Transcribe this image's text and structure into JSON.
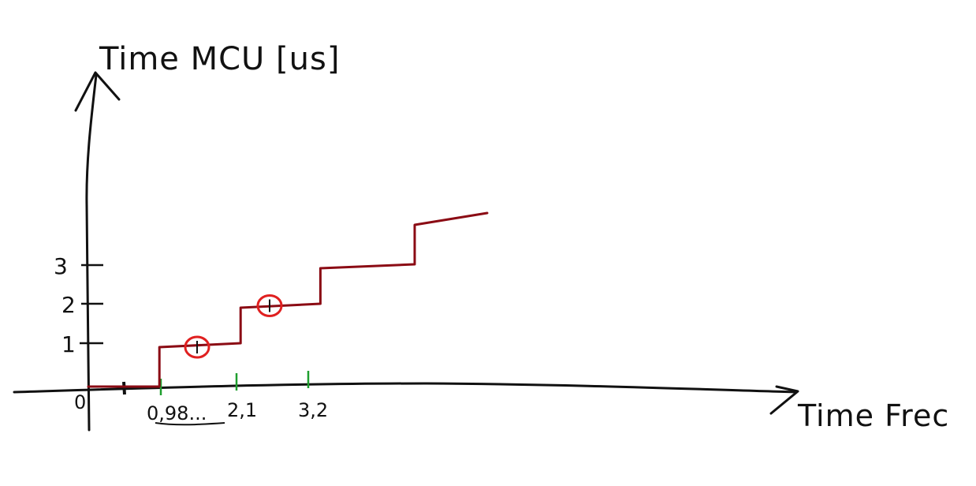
{
  "chart_data": {
    "type": "line",
    "ylabel": "Time MCU [us]",
    "xlabel": "Time Frec",
    "origin_label": "0",
    "yticks": [
      "1",
      "2",
      "3"
    ],
    "xticks": [
      "0,98...",
      "2,1",
      "3,2"
    ],
    "series": [
      {
        "step": true,
        "color": "#8b0b14",
        "x": [
          0,
          0.98,
          0.98,
          2.1,
          2.1,
          3.2,
          3.2,
          4.5,
          4.5,
          5.5
        ],
        "y": [
          0,
          0,
          1,
          1.1,
          2,
          2.1,
          3,
          3.1,
          4.1,
          4.4
        ]
      }
    ],
    "highlighted_points": [
      {
        "x": 1.5,
        "y": 1.0
      },
      {
        "x": 2.5,
        "y": 2.05
      }
    ],
    "xlim": [
      -1,
      9.5
    ],
    "ylim": [
      -0.5,
      6.9
    ],
    "grid": false,
    "colors": {
      "axes": "#111111",
      "series": "#8b0b14",
      "xtick_marks": "#1e9e2e",
      "highlight": "#e02020"
    }
  }
}
